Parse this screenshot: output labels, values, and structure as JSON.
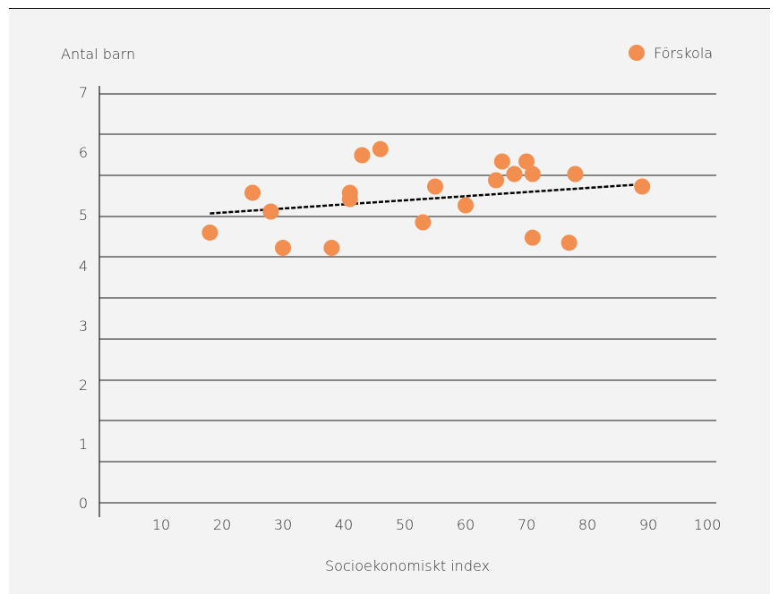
{
  "chart_data": {
    "type": "scatter",
    "ylabel": "Antal barn",
    "xlabel": "Socioekonomiskt index",
    "x_ticks": [
      10,
      20,
      30,
      40,
      50,
      60,
      70,
      80,
      90,
      100
    ],
    "y_ticks": [
      0,
      1,
      2,
      3,
      4,
      5,
      6,
      7
    ],
    "xlim": [
      0,
      100
    ],
    "legend_position": "top-right",
    "grid": "horizontal",
    "series": [
      {
        "name": "Förskola",
        "color": "#f28e50",
        "points": [
          {
            "x": 18,
            "y": 4.65
          },
          {
            "x": 25,
            "y": 5.35
          },
          {
            "x": 28,
            "y": 5.05
          },
          {
            "x": 30,
            "y": 4.35
          },
          {
            "x": 38,
            "y": 4.35
          },
          {
            "x": 41,
            "y": 5.35
          },
          {
            "x": 41,
            "y": 5.25
          },
          {
            "x": 43,
            "y": 5.95
          },
          {
            "x": 46,
            "y": 6.05
          },
          {
            "x": 53,
            "y": 4.85
          },
          {
            "x": 55,
            "y": 5.45
          },
          {
            "x": 60,
            "y": 5.15
          },
          {
            "x": 65,
            "y": 5.55
          },
          {
            "x": 66,
            "y": 5.85
          },
          {
            "x": 68,
            "y": 5.65
          },
          {
            "x": 70,
            "y": 5.85
          },
          {
            "x": 71,
            "y": 5.65
          },
          {
            "x": 71,
            "y": 4.55
          },
          {
            "x": 77,
            "y": 4.45
          },
          {
            "x": 78,
            "y": 5.65
          },
          {
            "x": 89,
            "y": 5.45
          }
        ]
      }
    ],
    "trendline": {
      "x": [
        18,
        88
      ],
      "y": [
        5.02,
        5.48
      ],
      "style": "dashed",
      "color": "#000000"
    }
  }
}
